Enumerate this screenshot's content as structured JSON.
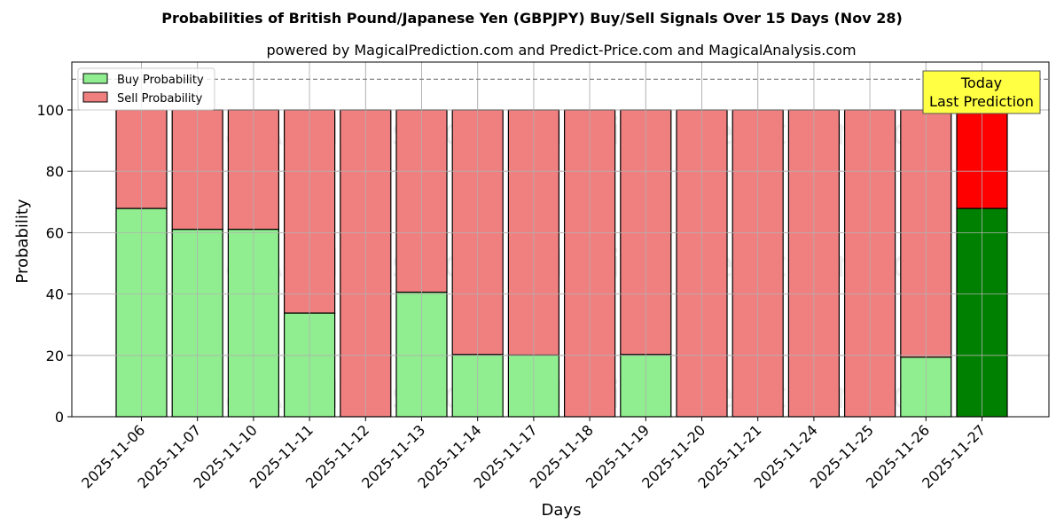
{
  "chart_data": {
    "type": "bar",
    "stacked": true,
    "title": "Probabilities of British Pound/Japanese Yen (GBPJPY) Buy/Sell Signals Over 15 Days (Nov 28)",
    "subtitle": "powered by MagicalPrediction.com and Predict-Price.com and MagicalAnalysis.com",
    "xlabel": "Days",
    "ylabel": "Probability",
    "ylim": [
      0,
      115
    ],
    "yticks": [
      0,
      20,
      40,
      60,
      80,
      100
    ],
    "grid": true,
    "legend_position": "upper left",
    "categories": [
      "2025-11-06",
      "2025-11-07",
      "2025-11-10",
      "2025-11-11",
      "2025-11-12",
      "2025-11-13",
      "2025-11-14",
      "2025-11-17",
      "2025-11-18",
      "2025-11-19",
      "2025-11-20",
      "2025-11-21",
      "2025-11-24",
      "2025-11-25",
      "2025-11-26",
      "2025-11-27"
    ],
    "series": [
      {
        "name": "Buy Probability",
        "color": "#90ee90",
        "values": [
          67.9,
          61.1,
          61.1,
          33.8,
          0,
          40.6,
          20.3,
          20.1,
          0,
          20.3,
          0,
          0,
          0,
          0,
          19.4,
          67.9
        ]
      },
      {
        "name": "Sell Probability",
        "color": "#f08080",
        "values": [
          32.1,
          38.9,
          38.9,
          66.2,
          100,
          59.4,
          79.7,
          79.9,
          100,
          79.7,
          100,
          100,
          100,
          100,
          80.6,
          32.1
        ]
      }
    ],
    "highlight": {
      "index": 15,
      "buy_color": "#008000",
      "sell_color": "#ff0000"
    },
    "reference_line": {
      "y": 110,
      "style": "dashed",
      "color": "#808080"
    },
    "annotations": [
      {
        "text_line1": "Today",
        "text_line2": "Last Prediction",
        "bg_color": "#ffff44"
      }
    ],
    "watermarks": [
      "MagicalAnalysis.com",
      "MagicalPrediction.com"
    ]
  }
}
